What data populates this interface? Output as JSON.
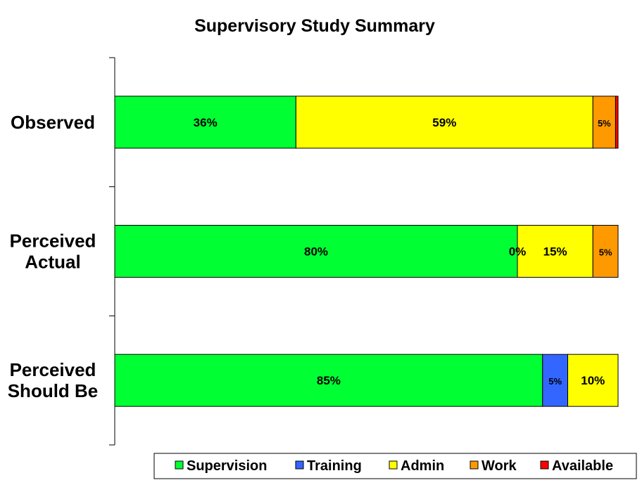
{
  "chart_data": {
    "type": "bar",
    "orientation": "horizontal",
    "stacked": true,
    "title": "Supervisory Study Summary",
    "xlabel": "",
    "ylabel": "",
    "xlim": [
      0,
      100
    ],
    "grid": false,
    "legend_position": "bottom",
    "categories": [
      [
        "Observed"
      ],
      [
        "Perceived",
        "Actual"
      ],
      [
        "Perceived",
        "Should Be"
      ]
    ],
    "series": [
      {
        "name": "Supervision",
        "color": "#00ff33",
        "values": [
          36,
          80,
          85
        ],
        "labels": [
          "36%",
          "80%",
          "85%"
        ]
      },
      {
        "name": "Training",
        "color": "#3366ff",
        "values": [
          0,
          0,
          5
        ],
        "labels": [
          "",
          "0%",
          "5%"
        ]
      },
      {
        "name": "Admin",
        "color": "#ffff00",
        "values": [
          59,
          15,
          10
        ],
        "labels": [
          "59%",
          "15%",
          "10%"
        ]
      },
      {
        "name": "Work",
        "color": "#ff9900",
        "values": [
          4.5,
          5,
          0
        ],
        "labels": [
          "5%",
          "5%",
          ""
        ]
      },
      {
        "name": "Available",
        "color": "#ff0000",
        "values": [
          0.5,
          0,
          0
        ],
        "labels": [
          "",
          "",
          ""
        ]
      }
    ]
  }
}
